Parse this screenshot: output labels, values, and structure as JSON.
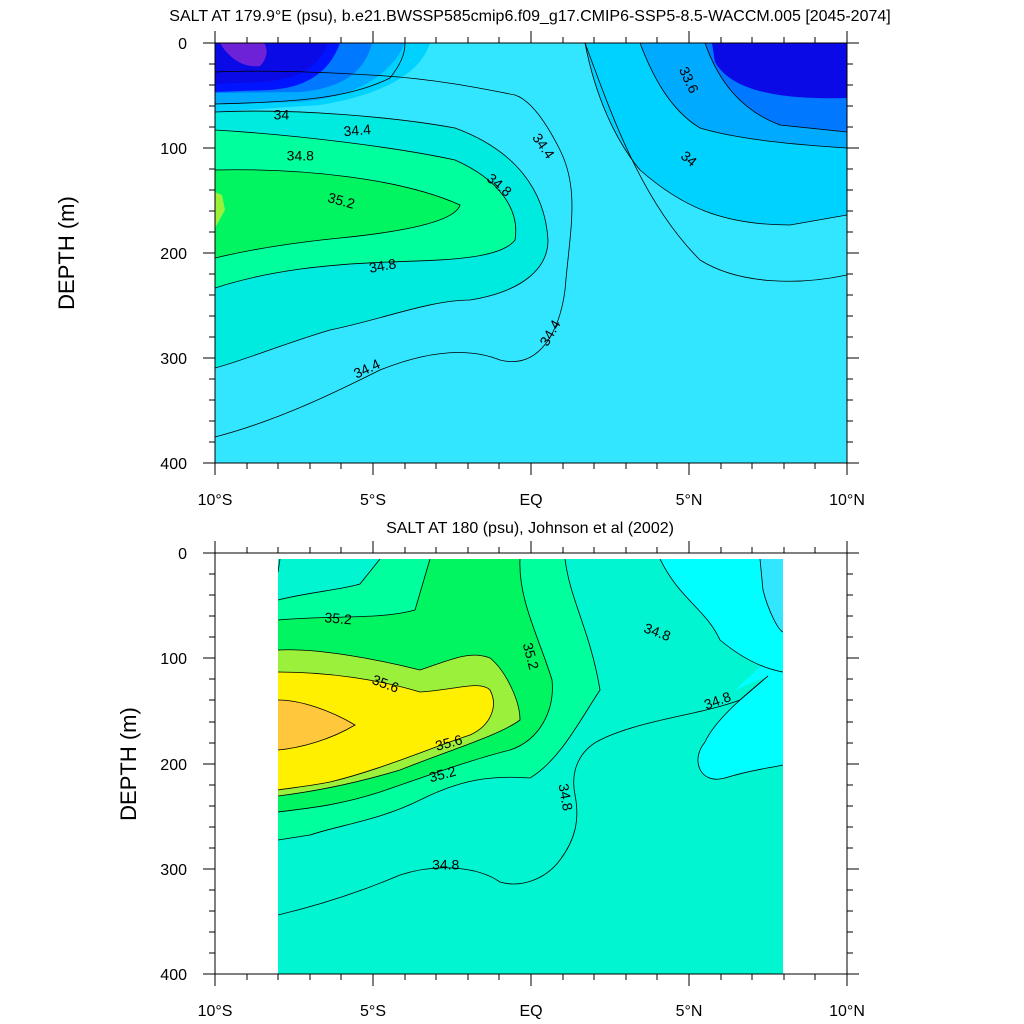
{
  "chart_data": [
    {
      "type": "contour",
      "title": "SALT AT 179.9°E (psu), b.e21.BWSSP585cmip6.f09_g17.CMIP6-SSP5-8.5-WACCM.005 [2045-2074]",
      "xlabel": "",
      "ylabel": "DEPTH (m)",
      "xlim": [
        -10,
        10
      ],
      "ylim": [
        400,
        0
      ],
      "x_tick_values": [
        -10,
        -5,
        0,
        5,
        10
      ],
      "x_tick_labels": [
        "10°S",
        "5°S",
        "EQ",
        "5°N",
        "10°N"
      ],
      "y_tick_values": [
        0,
        100,
        200,
        300,
        400
      ],
      "y_tick_labels": [
        "0",
        "100",
        "200",
        "300",
        "400"
      ],
      "contour_labels": [
        {
          "text": "33.6",
          "lat": 5.0,
          "depth": 35,
          "angle": 65
        },
        {
          "text": "34",
          "lat": -7.9,
          "depth": 68,
          "angle": 0
        },
        {
          "text": "34.4",
          "lat": -5.5,
          "depth": 83,
          "angle": -5
        },
        {
          "text": "34.4",
          "lat": 0.4,
          "depth": 98,
          "angle": 55
        },
        {
          "text": "34",
          "lat": 5.0,
          "depth": 110,
          "angle": 40
        },
        {
          "text": "34.8",
          "lat": -7.3,
          "depth": 107,
          "angle": 0
        },
        {
          "text": "35.2",
          "lat": -6.0,
          "depth": 150,
          "angle": 15
        },
        {
          "text": "34.8",
          "lat": -1.0,
          "depth": 135,
          "angle": 40
        },
        {
          "text": "34.8",
          "lat": -4.7,
          "depth": 212,
          "angle": -10
        },
        {
          "text": "34.4",
          "lat": 0.6,
          "depth": 276,
          "angle": -60
        },
        {
          "text": "34.4",
          "lat": -5.2,
          "depth": 310,
          "angle": -25
        }
      ]
    },
    {
      "type": "contour",
      "title": "SALT AT 180 (psu), Johnson et al (2002)",
      "xlabel": "",
      "ylabel": "DEPTH (m)",
      "xlim": [
        -10,
        10
      ],
      "ylim": [
        400,
        0
      ],
      "x_tick_values": [
        -10,
        -5,
        0,
        5,
        10
      ],
      "x_tick_labels": [
        "10°S",
        "5°S",
        "EQ",
        "5°N",
        "10°N"
      ],
      "y_tick_values": [
        0,
        100,
        200,
        300,
        400
      ],
      "y_tick_labels": [
        "0",
        "100",
        "200",
        "300",
        "400"
      ],
      "data_lat_range": [
        -8,
        8
      ],
      "contour_labels": [
        {
          "text": "35.2",
          "lat": -6.1,
          "depth": 62,
          "angle": 5
        },
        {
          "text": "34.8",
          "lat": 4.0,
          "depth": 75,
          "angle": 20
        },
        {
          "text": "35.2",
          "lat": 0.0,
          "depth": 98,
          "angle": 75
        },
        {
          "text": "35.6",
          "lat": -4.6,
          "depth": 124,
          "angle": 20
        },
        {
          "text": "34.8",
          "lat": 5.9,
          "depth": 140,
          "angle": -20
        },
        {
          "text": "35.6",
          "lat": -2.6,
          "depth": 180,
          "angle": -15
        },
        {
          "text": "35.2",
          "lat": -2.8,
          "depth": 210,
          "angle": -15
        },
        {
          "text": "34.8",
          "lat": 1.1,
          "depth": 232,
          "angle": 80
        },
        {
          "text": "34.8",
          "lat": -2.7,
          "depth": 296,
          "angle": 0
        }
      ]
    }
  ]
}
